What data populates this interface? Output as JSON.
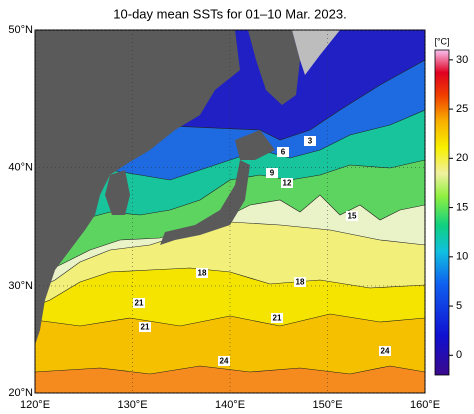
{
  "title": "10-day mean SSTs for 01–10 Mar. 2023.",
  "x_axis": {
    "lim": [
      120,
      160
    ],
    "ticks": [
      {
        "value": 120,
        "label": "120°E"
      },
      {
        "value": 130,
        "label": "130°E"
      },
      {
        "value": 140,
        "label": "140°E"
      },
      {
        "value": 150,
        "label": "150°E"
      },
      {
        "value": 160,
        "label": "160°E"
      }
    ]
  },
  "y_axis": {
    "lim": [
      20,
      50
    ],
    "ticks": [
      {
        "value": 20,
        "label": "20°N"
      },
      {
        "value": 30,
        "label": "30°N"
      },
      {
        "value": 40,
        "label": "40°N"
      },
      {
        "value": 50,
        "label": "50°N"
      }
    ]
  },
  "colorbar": {
    "unit": "[°C]",
    "lim": [
      -2,
      31
    ],
    "ticks": [
      0,
      5,
      10,
      15,
      20,
      25,
      30
    ]
  },
  "contour_labels": [
    3,
    6,
    9,
    12,
    15,
    18,
    18,
    21,
    21,
    21,
    24,
    24
  ]
}
